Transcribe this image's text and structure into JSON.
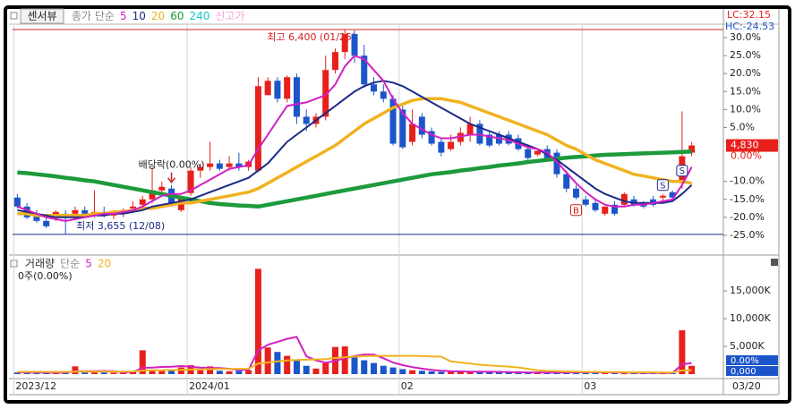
{
  "toolbar": {
    "view_button": "센서뷰"
  },
  "chart_data": [
    {
      "type": "candlestick",
      "legend_prefix": "종가 단순",
      "lc_label": "LC:32.15",
      "hc_label": "HC:-24.53",
      "high_label": "최고 6,400 (01/25)",
      "low_label": "최저 3,655 (12/08)",
      "current_price": "4,830",
      "current_change": "0.00%",
      "up_color": "#e8201c",
      "down_color": "#1c55c9",
      "ylim": [
        -30,
        35
      ],
      "yticks": [
        {
          "value": 30,
          "label": "30.0%"
        },
        {
          "value": 25,
          "label": "25.0%"
        },
        {
          "value": 20,
          "label": "20.0%"
        },
        {
          "value": 15,
          "label": "15.0%"
        },
        {
          "value": 10,
          "label": "10.0%"
        },
        {
          "value": 5,
          "label": "5.0%"
        },
        {
          "value": -10,
          "label": "-10.0%"
        },
        {
          "value": -15,
          "label": "-15.0%"
        },
        {
          "value": -20,
          "label": "-20.0%"
        },
        {
          "value": -25,
          "label": "-25.0%"
        }
      ],
      "open": [
        -14.5,
        -17,
        -19.5,
        -21,
        -20,
        -19,
        -19,
        -18,
        -19,
        -18.5,
        -19.5,
        -19,
        -17.5,
        -16.5,
        -15,
        -12.5,
        -12,
        -18,
        -13.25,
        -7,
        -6,
        -5,
        -6,
        -5,
        -6,
        -7,
        14,
        18,
        13,
        19,
        8,
        6,
        8,
        21,
        26,
        31,
        25,
        17,
        15,
        13,
        10,
        1,
        8,
        4,
        1,
        -1,
        1,
        3,
        6,
        3,
        3,
        3,
        2,
        -1,
        -2.5,
        -1,
        -2,
        -8,
        -12,
        -15,
        -16,
        -19,
        -16.5,
        -16.5,
        -15,
        -16,
        -15,
        -14.5,
        -13,
        -10.5,
        -2
      ],
      "high": [
        -13.5,
        -16,
        -18,
        -20,
        -18,
        -18,
        -17,
        -17,
        -12.5,
        -17,
        -18,
        -17.5,
        -15.5,
        -14,
        -6,
        -10,
        -11,
        -14,
        -6,
        -5,
        1,
        -4,
        -3,
        -2,
        -4,
        19,
        19,
        19,
        19.5,
        20,
        10,
        9,
        25,
        27,
        32.25,
        32,
        28,
        19,
        17,
        14,
        11,
        10,
        9,
        5,
        2,
        3,
        5,
        8,
        7,
        4,
        4,
        4,
        3,
        0,
        -1,
        0,
        -1,
        -7,
        -11,
        -14,
        -15,
        -17,
        -15.5,
        -13,
        -14,
        -15.5,
        -14,
        -13.5,
        -12.5,
        9.5,
        1
      ],
      "low": [
        -17.5,
        -20.5,
        -21.5,
        -23,
        -21,
        -24.75,
        -20.5,
        -20,
        -20,
        -20,
        -20.5,
        -20,
        -18.5,
        -17.5,
        -16,
        -14,
        -17,
        -18.5,
        -14,
        -9,
        -7,
        -7,
        -7,
        -7,
        -7,
        -7.5,
        14,
        12,
        12,
        6,
        4,
        5,
        7,
        20,
        24,
        23,
        16,
        14,
        12,
        0,
        -1,
        0,
        2,
        0,
        -3,
        -1.5,
        0,
        1,
        0,
        -0.5,
        0,
        0,
        -1.5,
        -4,
        -3,
        -4,
        -9,
        -13,
        -15,
        -17,
        -18.5,
        -19.5,
        -19.5,
        -17,
        -17,
        -17.5,
        -17,
        -16,
        -15,
        -12,
        -3
      ],
      "close": [
        -17,
        -20,
        -21,
        -22.5,
        -18.5,
        -20,
        -18,
        -19,
        -18.5,
        -19.5,
        -18.5,
        -18,
        -17,
        -15,
        -12.5,
        -11.5,
        -16,
        -14.5,
        -7,
        -6,
        -5,
        -6.5,
        -5,
        -6,
        -4.5,
        16.5,
        18,
        13,
        19,
        8,
        6,
        8,
        21,
        26,
        31,
        25,
        17,
        15,
        13,
        0.5,
        -0.5,
        6,
        3,
        0.5,
        -2,
        1,
        3.5,
        6,
        0.5,
        0,
        0.5,
        0.5,
        -1,
        -3.5,
        -1.5,
        -3.5,
        -8,
        -12,
        -14.5,
        -16.5,
        -18,
        -17,
        -19,
        -13.5,
        -16.5,
        -17,
        -16.5,
        -14,
        -14.5,
        -3,
        0
      ],
      "events": [
        null,
        null,
        null,
        null,
        null,
        null,
        null,
        null,
        null,
        null,
        null,
        null,
        null,
        null,
        null,
        null,
        "배당락(0.00%)",
        null,
        null,
        null,
        null,
        null,
        null,
        null,
        null,
        null,
        null,
        null,
        null,
        null,
        null,
        null,
        null,
        null,
        null,
        null,
        null,
        null,
        null,
        null,
        null,
        null,
        null,
        null,
        null,
        null,
        null,
        null,
        null,
        null,
        null,
        null,
        null,
        null,
        null,
        null,
        null,
        null,
        null,
        null,
        null,
        null,
        null,
        null,
        null,
        null,
        null,
        null,
        null,
        null,
        null
      ],
      "signals": [
        null,
        null,
        null,
        null,
        null,
        null,
        null,
        null,
        null,
        null,
        null,
        null,
        null,
        null,
        null,
        null,
        null,
        null,
        null,
        null,
        null,
        null,
        null,
        null,
        null,
        null,
        null,
        null,
        null,
        null,
        null,
        null,
        null,
        null,
        null,
        null,
        null,
        null,
        null,
        null,
        null,
        null,
        null,
        null,
        null,
        null,
        null,
        null,
        null,
        null,
        null,
        null,
        null,
        null,
        null,
        null,
        null,
        null,
        "B",
        null,
        null,
        null,
        null,
        null,
        null,
        null,
        null,
        "S",
        null,
        "S",
        null
      ],
      "series": [
        {
          "name": "5",
          "color": "#d21fc4",
          "values": [
            -17,
            -18,
            -19,
            -20,
            -20.5,
            -21,
            -20.5,
            -20,
            -19.5,
            -19,
            -19,
            -18.5,
            -18,
            -17,
            -15.5,
            -14,
            -13.5,
            -13.5,
            -12.5,
            -11,
            -9.5,
            -8,
            -6.5,
            -6,
            -5.5,
            -1,
            3,
            7,
            11,
            11.5,
            12,
            13,
            14,
            17,
            22,
            25,
            24,
            21,
            18,
            13,
            9,
            6,
            4.5,
            3,
            2,
            2,
            2.5,
            3,
            3,
            2.5,
            2,
            1.5,
            0.5,
            -0.5,
            -1,
            -2,
            -4.5,
            -7.5,
            -10.5,
            -13,
            -15,
            -16.5,
            -17,
            -17,
            -16.5,
            -16.5,
            -16,
            -15.5,
            -15,
            -11,
            -6
          ]
        },
        {
          "name": "10",
          "color": "#1b2a86",
          "values": [
            -18,
            -18.5,
            -19,
            -19.5,
            -20,
            -20,
            -20,
            -20,
            -19.5,
            -19.5,
            -19,
            -19,
            -18.5,
            -18,
            -17,
            -16.5,
            -16,
            -15.5,
            -15,
            -14,
            -13,
            -12,
            -11,
            -10,
            -9,
            -7,
            -5,
            -2,
            1,
            3,
            5,
            7,
            9,
            11,
            13,
            15,
            16.5,
            17.5,
            18,
            17.5,
            16.5,
            15,
            13.5,
            12,
            10.5,
            9,
            7.5,
            6,
            5,
            4,
            3,
            2,
            1,
            0,
            -1,
            -2.5,
            -4,
            -6,
            -8,
            -10,
            -12,
            -13.5,
            -14.5,
            -15.5,
            -16,
            -16,
            -16,
            -16,
            -15.5,
            -13.5,
            -11
          ]
        },
        {
          "name": "20",
          "color": "#f1b21f",
          "values": [
            -19,
            -19,
            -19.5,
            -19.5,
            -19.5,
            -19.5,
            -19.5,
            -19.5,
            -19,
            -19,
            -18.5,
            -18.5,
            -18,
            -17.5,
            -17.5,
            -17,
            -16.5,
            -16,
            -16,
            -15.5,
            -15,
            -14.5,
            -14,
            -13.5,
            -13,
            -12,
            -10.5,
            -9,
            -7.5,
            -6,
            -4.5,
            -3,
            -1.5,
            0,
            2,
            4,
            6,
            7.5,
            9,
            10.5,
            11.5,
            12.5,
            13,
            13,
            13,
            12.5,
            12,
            11,
            10,
            9,
            8,
            7,
            6,
            5,
            4,
            3,
            1.5,
            0,
            -1,
            -2.5,
            -4,
            -5,
            -6,
            -7,
            -8,
            -8.5,
            -9,
            -9.5,
            -10,
            -10,
            -10.5
          ]
        },
        {
          "name": "60",
          "color": "#1d9a3b",
          "values": [
            -7.5,
            -7.7,
            -8,
            -8.3,
            -8.6,
            -9,
            -9.3,
            -9.7,
            -10,
            -10.5,
            -11,
            -11.5,
            -12,
            -12.5,
            -13,
            -13.5,
            -14,
            -14.5,
            -15,
            -15.5,
            -16,
            -16.3,
            -16.5,
            -16.7,
            -16.8,
            -17,
            -16.5,
            -16,
            -15.5,
            -15,
            -14.5,
            -14,
            -13.5,
            -13,
            -12.5,
            -12,
            -11.5,
            -11,
            -10.5,
            -10,
            -9.5,
            -9,
            -8.5,
            -8,
            -7.7,
            -7.4,
            -7,
            -6.7,
            -6.3,
            -6,
            -5.6,
            -5.3,
            -5,
            -4.6,
            -4.3,
            -4,
            -3.7,
            -3.4,
            -3.2,
            -3,
            -2.8,
            -2.6,
            -2.5,
            -2.4,
            -2.3,
            -2.2,
            -2.1,
            -2,
            -1.9,
            -1.8,
            -1.7
          ]
        }
      ],
      "extra_legend": [
        {
          "name": "240",
          "color": "#18c8c8"
        },
        {
          "name": "신고가",
          "color": "#f0a6d8"
        }
      ]
    },
    {
      "type": "bar",
      "legend_prefix": "단순",
      "position_label": "0주(0.00%)",
      "volume_change": "0.00%",
      "volume_value": "0,000",
      "last_date": "03/20",
      "categories": [
        "2023/12",
        null,
        null,
        null,
        null,
        null,
        null,
        null,
        null,
        null,
        null,
        null,
        null,
        null,
        null,
        null,
        null,
        null,
        "2024/01",
        null,
        null,
        null,
        null,
        null,
        null,
        null,
        null,
        null,
        null,
        null,
        null,
        null,
        null,
        null,
        null,
        null,
        null,
        null,
        null,
        null,
        "02",
        null,
        null,
        null,
        null,
        null,
        null,
        null,
        null,
        null,
        null,
        null,
        null,
        null,
        null,
        null,
        null,
        null,
        null,
        "03",
        null,
        null,
        null,
        null,
        null,
        null,
        null,
        null,
        null,
        null,
        null
      ],
      "ylim": [
        0,
        21000
      ],
      "yticks": [
        {
          "value": 5000,
          "label": "5,000K"
        },
        {
          "value": 10000,
          "label": "10,000K"
        },
        {
          "value": 15000,
          "label": "15,000K"
        }
      ],
      "series": [
        {
          "name": "거래량",
          "type": "bar",
          "color": "#333333",
          "values": [
            300,
            250,
            300,
            200,
            250,
            350,
            1400,
            300,
            400,
            300,
            250,
            350,
            500,
            4300,
            600,
            700,
            600,
            1200,
            1600,
            700,
            1400,
            600,
            500,
            600,
            700,
            19000,
            4800,
            4000,
            3300,
            2500,
            1500,
            1000,
            2000,
            4900,
            5000,
            3300,
            2500,
            2000,
            1500,
            1200,
            900,
            700,
            600,
            500,
            400,
            400,
            450,
            500,
            400,
            350,
            300,
            300,
            300,
            300,
            250,
            250,
            350,
            400,
            350,
            300,
            300,
            250,
            250,
            300,
            200,
            200,
            200,
            250,
            200,
            7900,
            1500
          ]
        },
        {
          "name": "5",
          "type": "line",
          "color": "#d21fc4",
          "values": [
            300,
            300,
            290,
            270,
            260,
            270,
            500,
            500,
            530,
            550,
            520,
            320,
            360,
            1140,
            1180,
            1290,
            1330,
            1460,
            1320,
            1160,
            1120,
            1100,
            960,
            760,
            760,
            4280,
            5300,
            5800,
            6360,
            6720,
            3220,
            2460,
            2060,
            2380,
            2880,
            3240,
            3540,
            3540,
            2860,
            2100,
            1620,
            1260,
            980,
            780,
            620,
            520,
            490,
            450,
            430,
            420,
            400,
            370,
            330,
            310,
            290,
            280,
            290,
            310,
            320,
            330,
            340,
            320,
            290,
            280,
            260,
            230,
            230,
            230,
            210,
            1750,
            2010
          ]
        },
        {
          "name": "20",
          "type": "line",
          "color": "#f1b21f",
          "values": [
            400,
            400,
            400,
            400,
            400,
            400,
            450,
            450,
            450,
            450,
            450,
            450,
            480,
            650,
            680,
            700,
            720,
            770,
            830,
            850,
            900,
            920,
            930,
            950,
            970,
            1900,
            2100,
            2300,
            2450,
            2550,
            2600,
            2650,
            2700,
            2900,
            3050,
            3150,
            3250,
            3300,
            3300,
            3300,
            3300,
            3300,
            3250,
            3200,
            3150,
            2300,
            2100,
            1900,
            1700,
            1550,
            1450,
            1350,
            1200,
            950,
            700,
            580,
            520,
            470,
            430,
            400,
            380,
            360,
            350,
            340,
            330,
            320,
            310,
            300,
            290,
            660,
            710
          ]
        }
      ]
    }
  ]
}
